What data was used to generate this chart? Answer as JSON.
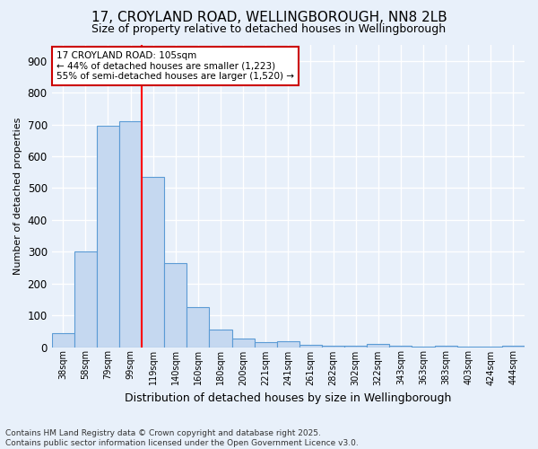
{
  "title1": "17, CROYLAND ROAD, WELLINGBOROUGH, NN8 2LB",
  "title2": "Size of property relative to detached houses in Wellingborough",
  "xlabel": "Distribution of detached houses by size in Wellingborough",
  "ylabel": "Number of detached properties",
  "categories": [
    "38sqm",
    "58sqm",
    "79sqm",
    "99sqm",
    "119sqm",
    "140sqm",
    "160sqm",
    "180sqm",
    "200sqm",
    "221sqm",
    "241sqm",
    "261sqm",
    "282sqm",
    "302sqm",
    "322sqm",
    "343sqm",
    "363sqm",
    "383sqm",
    "403sqm",
    "424sqm",
    "444sqm"
  ],
  "values": [
    45,
    300,
    695,
    710,
    535,
    265,
    125,
    55,
    28,
    15,
    18,
    8,
    4,
    5,
    10,
    4,
    2,
    4,
    2,
    1,
    5
  ],
  "bar_color": "#c5d8f0",
  "bar_edge_color": "#5b9bd5",
  "bg_color": "#e8f0fa",
  "grid_color": "#ffffff",
  "red_line_x": 3.5,
  "annotation_line1": "17 CROYLAND ROAD: 105sqm",
  "annotation_line2": "← 44% of detached houses are smaller (1,223)",
  "annotation_line3": "55% of semi-detached houses are larger (1,520) →",
  "annotation_box_color": "#ffffff",
  "annotation_box_edge": "#cc0000",
  "ylim": [
    0,
    950
  ],
  "yticks": [
    0,
    100,
    200,
    300,
    400,
    500,
    600,
    700,
    800,
    900
  ],
  "footer": "Contains HM Land Registry data © Crown copyright and database right 2025.\nContains public sector information licensed under the Open Government Licence v3.0."
}
